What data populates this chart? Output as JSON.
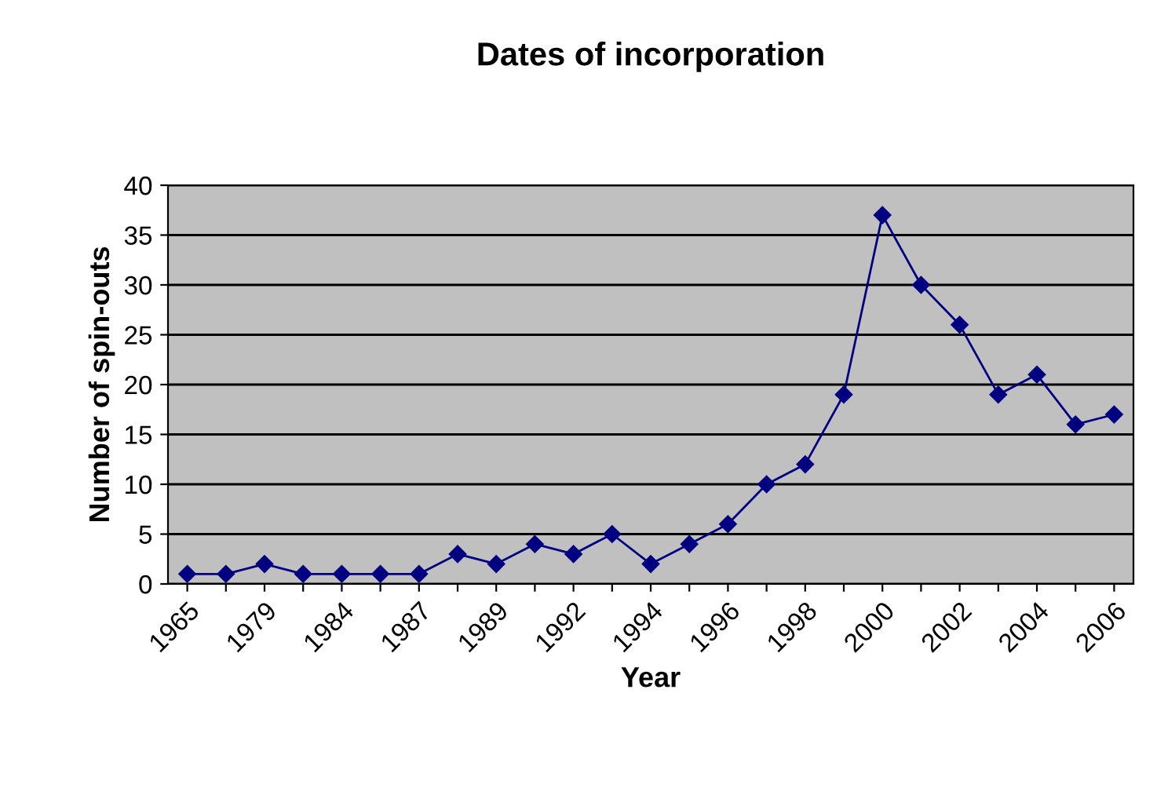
{
  "chart_data": {
    "type": "line",
    "title": "Dates of incorporation",
    "xlabel": "Year",
    "ylabel": "Number of spin-outs",
    "categories": [
      "1965",
      null,
      "1979",
      null,
      "1984",
      null,
      "1987",
      null,
      "1989",
      null,
      "1992",
      null,
      "1994",
      null,
      "1996",
      null,
      "1998",
      null,
      "2000",
      null,
      "2002",
      null,
      "2004",
      null,
      "2006"
    ],
    "series": [
      {
        "color": "#000080",
        "values": [
          1,
          1,
          2,
          1,
          1,
          1,
          1,
          3,
          2,
          4,
          3,
          5,
          2,
          4,
          6,
          10,
          12,
          19,
          37,
          30,
          26,
          19,
          21,
          16,
          17
        ]
      }
    ],
    "ylim": [
      0,
      40
    ],
    "yticks": [
      0,
      5,
      10,
      15,
      20,
      25,
      30,
      35,
      40
    ],
    "grid": "y",
    "marker": "diamond",
    "line_style": "solid",
    "legend": false
  }
}
